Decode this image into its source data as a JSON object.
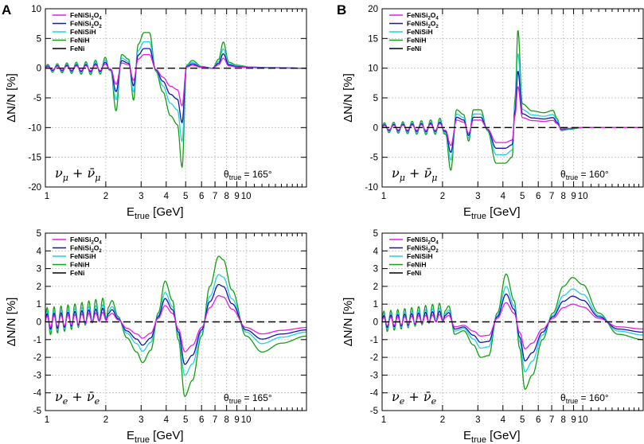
{
  "panel_labels": [
    "A",
    "B"
  ],
  "chart_data": [
    {
      "type": "line",
      "panel": "A",
      "channel": "ν_μ + ν̄_μ",
      "theta_label": "θ_true = 165°",
      "xlabel": "E_true [GeV]",
      "ylabel": "ΔN/N [%]",
      "xscale": "log",
      "xlim": [
        1,
        20
      ],
      "ylim": [
        -20,
        10
      ],
      "yticks": [
        -20,
        -15,
        -10,
        -5,
        0,
        5,
        10
      ],
      "xticks": [
        1,
        2,
        3,
        4,
        5,
        6,
        7,
        8,
        9,
        10
      ],
      "grid": true,
      "legend": "top-left",
      "series": [
        {
          "name": "FeNiSi2O4",
          "color": "#e61ee6",
          "scale": 0.38
        },
        {
          "name": "FeNiSi2O2",
          "color": "#1414b4",
          "scale": 0.55
        },
        {
          "name": "FeNiSiH",
          "color": "#1ed2e6",
          "scale": 0.74
        },
        {
          "name": "FeNiH",
          "color": "#14a014",
          "scale": 1.0
        },
        {
          "name": "FeNi",
          "color": "#000000",
          "scale": 0
        }
      ],
      "envelope": {
        "x": [
          1.0,
          1.3,
          1.6,
          1.9,
          2.1,
          2.25,
          2.4,
          2.6,
          2.75,
          2.9,
          3.1,
          3.3,
          3.55,
          3.85,
          4.2,
          4.55,
          4.8,
          5.05,
          5.4,
          6.0,
          6.8,
          7.3,
          7.7,
          8.2,
          9.0,
          10.5,
          13.0,
          20.0
        ],
        "y": [
          0.0,
          0.1,
          0.0,
          0.3,
          1.0,
          -7.2,
          2.3,
          1.5,
          -5.4,
          4.0,
          6.0,
          6.0,
          -0.5,
          -4.0,
          -8.0,
          -9.5,
          -16.7,
          0.5,
          1.3,
          0.3,
          0.0,
          1.5,
          4.4,
          1.0,
          0.5,
          0.2,
          0.1,
          0.0
        ]
      },
      "wiggle": {
        "from": 1.0,
        "to": 2.15,
        "amp": [
          0.6,
          1.4
        ],
        "periods": 7
      }
    },
    {
      "type": "line",
      "panel": "B",
      "channel": "ν_μ + ν̄_μ",
      "theta_label": "θ_true = 160°",
      "xlabel": "E_true [GeV]",
      "ylabel": "ΔN/N [%]",
      "xscale": "log",
      "xlim": [
        1,
        20
      ],
      "ylim": [
        -10,
        20
      ],
      "yticks": [
        -10,
        -5,
        0,
        5,
        10,
        15,
        20
      ],
      "xticks": [
        1,
        2,
        3,
        4,
        5,
        6,
        7,
        8,
        9,
        10
      ],
      "grid": true,
      "legend": "top-left",
      "series": [
        {
          "name": "FeNiSi2O4",
          "color": "#e61ee6",
          "scale": 0.42
        },
        {
          "name": "FeNiSi2O2",
          "color": "#1414b4",
          "scale": 0.58
        },
        {
          "name": "FeNiSiH",
          "color": "#1ed2e6",
          "scale": 0.76
        },
        {
          "name": "FeNiH",
          "color": "#14a014",
          "scale": 1.0
        },
        {
          "name": "FeNi",
          "color": "#000000",
          "scale": 0
        }
      ],
      "envelope": {
        "x": [
          1.0,
          1.6,
          2.05,
          2.2,
          2.35,
          2.55,
          2.7,
          2.85,
          3.1,
          3.35,
          3.7,
          4.1,
          4.45,
          4.6,
          4.75,
          5.0,
          5.6,
          6.4,
          7.1,
          7.45,
          7.8,
          8.5,
          10.0,
          20.0
        ],
        "y": [
          0.0,
          0.0,
          0.3,
          -7.2,
          3.0,
          2.2,
          -2.3,
          3.0,
          3.0,
          -0.5,
          -6.0,
          -6.0,
          -5.0,
          5.0,
          16.5,
          4.0,
          2.8,
          2.5,
          2.9,
          1.5,
          -0.5,
          -0.3,
          0.0,
          0.0
        ]
      },
      "wiggle": {
        "from": 1.0,
        "to": 2.1,
        "amp": [
          0.8,
          1.4
        ],
        "periods": 7
      }
    },
    {
      "type": "line",
      "panel": "A",
      "channel": "ν_e + ν̄_e",
      "theta_label": "θ_true = 165°",
      "xlabel": "E_true [GeV]",
      "ylabel": "ΔN/N [%]",
      "xscale": "log",
      "xlim": [
        1,
        20
      ],
      "ylim": [
        -5,
        5
      ],
      "yticks": [
        -5,
        -4,
        -3,
        -2,
        -1,
        0,
        1,
        2,
        3,
        4,
        5
      ],
      "xticks": [
        1,
        2,
        3,
        4,
        5,
        6,
        7,
        8,
        9,
        10
      ],
      "grid": true,
      "legend": "top-left",
      "series": [
        {
          "name": "FeNiSi2O4",
          "color": "#e61ee6",
          "scale": 0.4
        },
        {
          "name": "FeNiSi2O2",
          "color": "#1414b4",
          "scale": 0.57
        },
        {
          "name": "FeNiSiH",
          "color": "#1ed2e6",
          "scale": 0.72
        },
        {
          "name": "FeNiH",
          "color": "#14a014",
          "scale": 1.0
        },
        {
          "name": "FeNi",
          "color": "#000000",
          "scale": 0
        }
      ],
      "envelope": {
        "x": [
          1.0,
          2.05,
          2.15,
          2.3,
          2.55,
          2.85,
          3.05,
          3.35,
          3.65,
          3.95,
          4.3,
          4.6,
          4.95,
          5.4,
          6.0,
          6.6,
          7.3,
          7.7,
          8.5,
          10.0,
          12.0,
          15.0,
          20.0
        ],
        "y": [
          0.6,
          0.8,
          1.2,
          0.3,
          -0.9,
          -1.7,
          -2.3,
          -1.6,
          0.5,
          2.3,
          1.2,
          -1.0,
          -4.2,
          -3.3,
          -0.8,
          2.0,
          3.7,
          3.5,
          1.8,
          -0.8,
          -1.7,
          -1.2,
          -0.8
        ]
      },
      "wiggle": {
        "from": 1.0,
        "to": 2.05,
        "amp": [
          0.8,
          0.6
        ],
        "periods": 9
      }
    },
    {
      "type": "line",
      "panel": "B",
      "channel": "ν_e + ν̄_e",
      "theta_label": "θ_true = 160°",
      "xlabel": "E_true [GeV]",
      "ylabel": "ΔN/N [%]",
      "xscale": "log",
      "xlim": [
        1,
        20
      ],
      "ylim": [
        -5,
        5
      ],
      "yticks": [
        -5,
        -4,
        -3,
        -2,
        -1,
        0,
        1,
        2,
        3,
        4,
        5
      ],
      "xticks": [
        1,
        2,
        3,
        4,
        5,
        6,
        7,
        8,
        9,
        10
      ],
      "grid": true,
      "legend": "top-left",
      "series": [
        {
          "name": "FeNiSi2O4",
          "color": "#e61ee6",
          "scale": 0.4
        },
        {
          "name": "FeNiSi2O2",
          "color": "#1414b4",
          "scale": 0.58
        },
        {
          "name": "FeNiSiH",
          "color": "#1ed2e6",
          "scale": 0.74
        },
        {
          "name": "FeNiH",
          "color": "#14a014",
          "scale": 1.0
        },
        {
          "name": "FeNi",
          "color": "#000000",
          "scale": 0
        }
      ],
      "envelope": {
        "x": [
          1.0,
          2.05,
          2.15,
          2.3,
          2.55,
          2.85,
          3.1,
          3.4,
          3.75,
          4.15,
          4.55,
          4.85,
          5.15,
          5.6,
          6.3,
          7.1,
          8.0,
          8.9,
          10.0,
          12.0,
          15.0,
          20.0
        ],
        "y": [
          0.5,
          0.6,
          0.9,
          -0.7,
          -0.5,
          -1.3,
          -2.0,
          -1.9,
          0.5,
          2.7,
          1.2,
          -1.5,
          -3.8,
          -3.0,
          -1.0,
          0.5,
          2.0,
          2.5,
          2.1,
          0.5,
          -0.7,
          -1.0
        ]
      },
      "wiggle": {
        "from": 1.0,
        "to": 2.05,
        "amp": [
          0.6,
          0.5
        ],
        "periods": 9
      }
    }
  ]
}
